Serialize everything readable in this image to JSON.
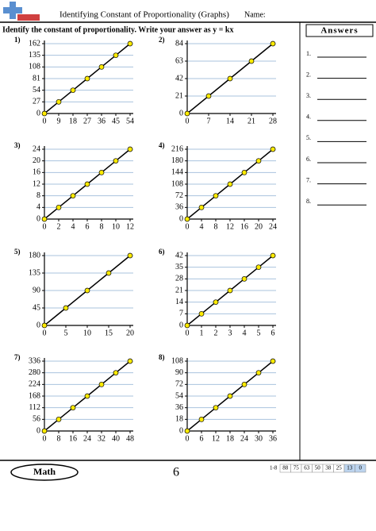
{
  "header": {
    "title": "Identifying Constant of Proportionality (Graphs)",
    "name_label": "Name:",
    "instructions": "Identify the constant of proportionality. Write your answer as y = kx"
  },
  "answers": {
    "title": "Answers",
    "items": [
      "1.",
      "2.",
      "3.",
      "4.",
      "5.",
      "6.",
      "7.",
      "8."
    ]
  },
  "charts": [
    {
      "label": "1)",
      "type": "line",
      "x": [
        0,
        9,
        18,
        27,
        36,
        45,
        54
      ],
      "values": [
        0,
        27,
        54,
        81,
        108,
        135,
        162
      ],
      "xlim": [
        0,
        54
      ],
      "ylim": [
        0,
        162
      ],
      "xticks": [
        0,
        9,
        18,
        27,
        36,
        45,
        54
      ],
      "yticks": [
        0,
        27,
        54,
        81,
        108,
        135,
        162
      ],
      "grid": true,
      "color": "#ffeb00"
    },
    {
      "label": "2)",
      "type": "line",
      "x": [
        0,
        7,
        14,
        21,
        28
      ],
      "values": [
        0,
        21,
        42,
        63,
        84
      ],
      "xlim": [
        0,
        28
      ],
      "ylim": [
        0,
        84
      ],
      "xticks": [
        0,
        7,
        14,
        21,
        28
      ],
      "yticks": [
        0,
        21,
        42,
        63,
        84
      ],
      "grid": true,
      "color": "#ffeb00"
    },
    {
      "label": "3)",
      "type": "line",
      "x": [
        0,
        2,
        4,
        6,
        8,
        10,
        12
      ],
      "values": [
        0,
        4,
        8,
        12,
        16,
        20,
        24
      ],
      "xlim": [
        0,
        12
      ],
      "ylim": [
        0,
        24
      ],
      "xticks": [
        0,
        2,
        4,
        6,
        8,
        10,
        12
      ],
      "yticks": [
        0,
        4,
        8,
        12,
        16,
        20,
        24
      ],
      "grid": true,
      "color": "#ffeb00"
    },
    {
      "label": "4)",
      "type": "line",
      "x": [
        0,
        4,
        8,
        12,
        16,
        20,
        24
      ],
      "values": [
        0,
        36,
        72,
        108,
        144,
        180,
        216
      ],
      "xlim": [
        0,
        24
      ],
      "ylim": [
        0,
        216
      ],
      "xticks": [
        0,
        4,
        8,
        12,
        16,
        20,
        24
      ],
      "yticks": [
        0,
        36,
        72,
        108,
        144,
        180,
        216
      ],
      "grid": true,
      "color": "#ffeb00"
    },
    {
      "label": "5)",
      "type": "line",
      "x": [
        0,
        5,
        10,
        15,
        20
      ],
      "values": [
        0,
        45,
        90,
        135,
        180
      ],
      "xlim": [
        0,
        20
      ],
      "ylim": [
        0,
        180
      ],
      "xticks": [
        0,
        5,
        10,
        15,
        20
      ],
      "yticks": [
        0,
        45,
        90,
        135,
        180
      ],
      "grid": true,
      "color": "#ffeb00"
    },
    {
      "label": "6)",
      "type": "line",
      "x": [
        0,
        1,
        2,
        3,
        4,
        5,
        6
      ],
      "values": [
        0,
        7,
        14,
        21,
        28,
        35,
        42
      ],
      "xlim": [
        0,
        6
      ],
      "ylim": [
        0,
        42
      ],
      "xticks": [
        0,
        1,
        2,
        3,
        4,
        5,
        6
      ],
      "yticks": [
        0,
        7,
        14,
        21,
        28,
        35,
        42
      ],
      "grid": true,
      "color": "#ffeb00"
    },
    {
      "label": "7)",
      "type": "line",
      "x": [
        0,
        8,
        16,
        24,
        32,
        40,
        48
      ],
      "values": [
        0,
        56,
        112,
        168,
        224,
        280,
        336
      ],
      "xlim": [
        0,
        48
      ],
      "ylim": [
        0,
        336
      ],
      "xticks": [
        0,
        8,
        16,
        24,
        32,
        40,
        48
      ],
      "yticks": [
        0,
        56,
        112,
        168,
        224,
        280,
        336
      ],
      "grid": true,
      "color": "#ffeb00"
    },
    {
      "label": "8)",
      "type": "line",
      "x": [
        0,
        6,
        12,
        18,
        24,
        30,
        36
      ],
      "values": [
        0,
        18,
        36,
        54,
        72,
        90,
        108
      ],
      "xlim": [
        0,
        36
      ],
      "ylim": [
        0,
        108
      ],
      "xticks": [
        0,
        6,
        12,
        18,
        24,
        30,
        36
      ],
      "yticks": [
        0,
        18,
        36,
        54,
        72,
        90,
        108
      ],
      "grid": true,
      "color": "#ffeb00"
    }
  ],
  "footer": {
    "subject": "Math",
    "page": "6",
    "score_label": "1-8",
    "scores": [
      88,
      75,
      63,
      50,
      38,
      25,
      13,
      0
    ]
  }
}
